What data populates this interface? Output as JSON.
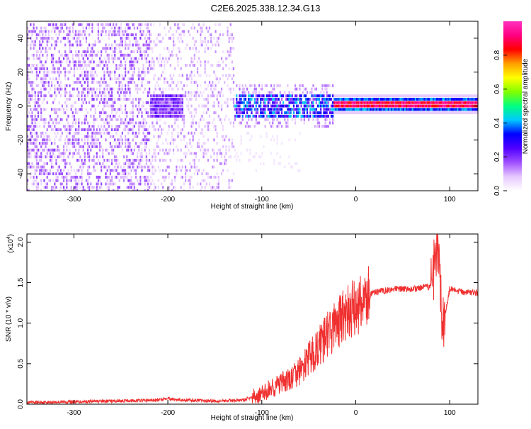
{
  "title": "C2E6.2025.338.12.34.G13",
  "chart_data": [
    {
      "type": "heatmap",
      "name": "spectrogram",
      "xlabel": "Height of straight line (km)",
      "ylabel": "Frequency (Hz)",
      "xlim": [
        -350,
        130
      ],
      "ylim": [
        -50,
        50
      ],
      "xticks": [
        -300,
        -200,
        -100,
        0,
        100
      ],
      "yticks": [
        -40,
        -20,
        0,
        20,
        40
      ],
      "colorbar": {
        "label": "Normalized spectral amplitude",
        "range": [
          0.0,
          1.0
        ],
        "ticks": [
          0.0,
          0.2,
          0.4,
          0.6,
          0.8
        ],
        "colors": [
          "#ffffff",
          "#e6c8ff",
          "#a050ff",
          "#5000ff",
          "#0000ff",
          "#00c8ff",
          "#00ff80",
          "#80ff00",
          "#ffff00",
          "#ffa000",
          "#ff0000",
          "#ff0080",
          "#ff30c0"
        ]
      },
      "regions": [
        {
          "x_range": [
            -350,
            -220
          ],
          "note": "broadband scattered noise, amplitude ~0.05-0.2"
        },
        {
          "x_range": [
            -220,
            -130
          ],
          "note": "weak scattered noise with band near 0 Hz"
        },
        {
          "x_range": [
            -130,
            -25
          ],
          "note": "band at 0 Hz, amplitude ~0.3-0.5"
        },
        {
          "x_range": [
            -25,
            130
          ],
          "note": "narrow tone at ~1 Hz, amplitude ~0.8-1.0"
        }
      ]
    },
    {
      "type": "line",
      "name": "snr",
      "xlabel": "Height of straight line (km)",
      "ylabel": "SNR (10 * v/v)",
      "yscale_label": "(x10",
      "yscale_exp": "4",
      "y_multiplier": 10000,
      "xlim": [
        -350,
        130
      ],
      "ylim": [
        0,
        2.1
      ],
      "xticks": [
        -300,
        -200,
        -100,
        0,
        100
      ],
      "yticks": [
        0.0,
        0.5,
        1.0,
        1.5,
        2.0
      ],
      "color": "#f03030",
      "series": [
        {
          "name": "SNR",
          "x": [
            -350,
            -300,
            -250,
            -210,
            -200,
            -195,
            -180,
            -150,
            -120,
            -100,
            -90,
            -80,
            -70,
            -60,
            -50,
            -40,
            -30,
            -20,
            -10,
            0,
            10,
            20,
            30,
            40,
            60,
            80,
            88,
            92,
            100,
            110,
            120,
            130
          ],
          "y": [
            0.02,
            0.03,
            0.04,
            0.05,
            0.08,
            0.06,
            0.05,
            0.04,
            0.05,
            0.12,
            0.2,
            0.25,
            0.3,
            0.4,
            0.55,
            0.7,
            0.85,
            1.0,
            1.1,
            1.2,
            1.3,
            1.38,
            1.4,
            1.42,
            1.42,
            1.45,
            2.1,
            0.9,
            1.42,
            1.39,
            1.38,
            1.37
          ]
        }
      ]
    }
  ]
}
